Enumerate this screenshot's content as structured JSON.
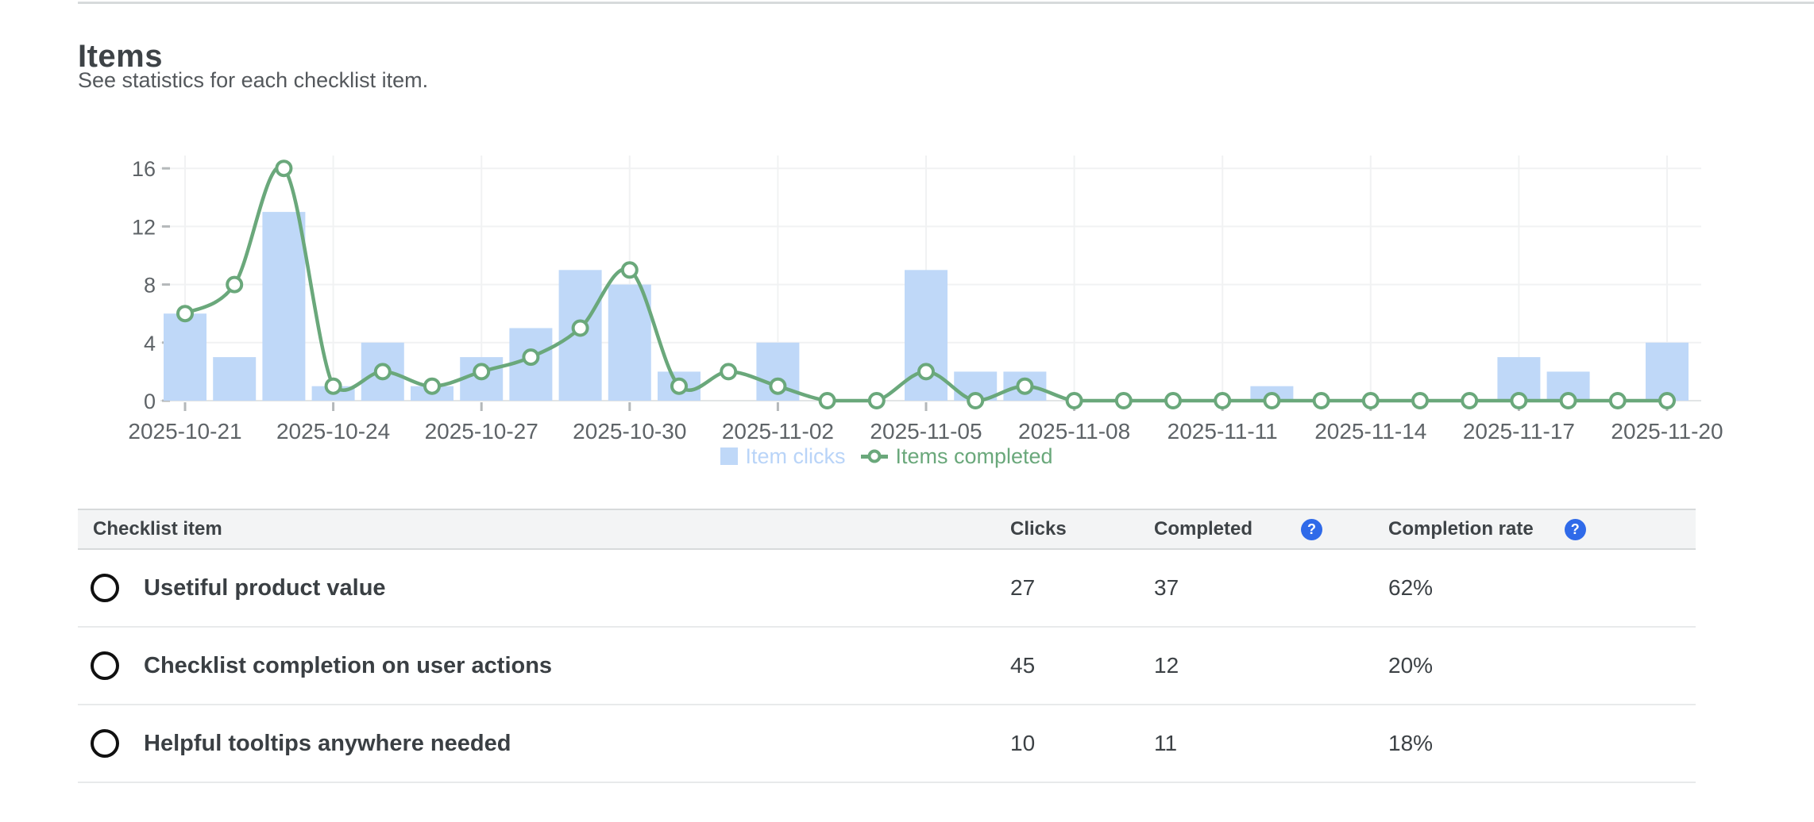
{
  "page": {
    "title": "Items",
    "subtitle": "See statistics for each checklist item."
  },
  "chart_data": {
    "type": "combo-bar-line",
    "x": [
      "2025-10-21",
      "2025-10-22",
      "2025-10-23",
      "2025-10-24",
      "2025-10-25",
      "2025-10-26",
      "2025-10-27",
      "2025-10-28",
      "2025-10-29",
      "2025-10-30",
      "2025-10-31",
      "2025-11-01",
      "2025-11-02",
      "2025-11-03",
      "2025-11-04",
      "2025-11-05",
      "2025-11-06",
      "2025-11-07",
      "2025-11-08",
      "2025-11-09",
      "2025-11-10",
      "2025-11-11",
      "2025-11-12",
      "2025-11-13",
      "2025-11-14",
      "2025-11-15",
      "2025-11-16",
      "2025-11-17",
      "2025-11-18",
      "2025-11-19",
      "2025-11-20"
    ],
    "series": [
      {
        "name": "Item clicks",
        "type": "bar",
        "color": "#bfd8f8",
        "values": [
          6,
          3,
          13,
          1,
          4,
          1,
          3,
          5,
          9,
          8,
          2,
          0,
          4,
          0,
          0,
          9,
          2,
          2,
          0,
          0,
          0,
          0,
          1,
          0,
          0,
          0,
          0,
          3,
          2,
          0,
          4
        ]
      },
      {
        "name": "Items completed",
        "type": "line",
        "color": "#6aa87b",
        "marker_fill": "#ffffff",
        "values": [
          6,
          8,
          16,
          1,
          2,
          1,
          2,
          3,
          5,
          9,
          1,
          2,
          1,
          0,
          0,
          2,
          0,
          1,
          0,
          0,
          0,
          0,
          0,
          0,
          0,
          0,
          0,
          0,
          0,
          0,
          0
        ]
      }
    ],
    "yticks": [
      0,
      4,
      8,
      12,
      16
    ],
    "ylim": [
      0,
      17
    ],
    "xtick_every": 3,
    "grid": true,
    "legend_position": "bottom",
    "legend_text_colors": [
      "#b9d4f8",
      "#6aa87b"
    ]
  },
  "table": {
    "columns": [
      "Checklist item",
      "Clicks",
      "Completed",
      "Completion rate"
    ],
    "help_glyph": "?",
    "help_color": "#2f6ae9",
    "rows": [
      {
        "label": "Usetiful product value",
        "clicks": "27",
        "completed": "37",
        "rate": "62%"
      },
      {
        "label": "Checklist completion on user actions",
        "clicks": "45",
        "completed": "12",
        "rate": "20%"
      },
      {
        "label": "Helpful tooltips anywhere needed",
        "clicks": "10",
        "completed": "11",
        "rate": "18%"
      }
    ]
  }
}
